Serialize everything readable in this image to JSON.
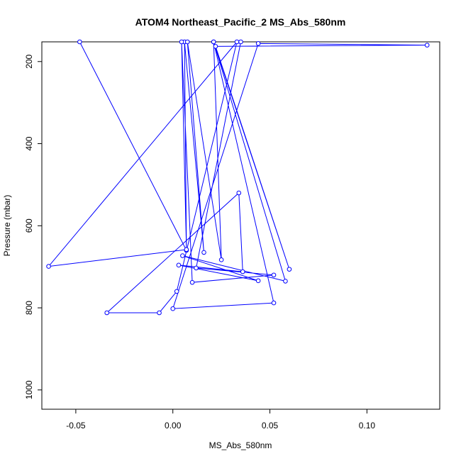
{
  "chart_data": {
    "type": "line",
    "title": "ATOM4 Northeast_Pacific_2 MS_Abs_580nm",
    "xlabel": "MS_Abs_580nm",
    "ylabel": "Pressure (mbar)",
    "xlim": [
      -0.0675,
      0.1375
    ],
    "ylim": [
      1047,
      152
    ],
    "y_reversed": true,
    "x_ticks": [
      -0.05,
      0.0,
      0.05,
      0.1
    ],
    "x_tick_labels": [
      "-0.05",
      "0.00",
      "0.05",
      "0.10"
    ],
    "y_ticks": [
      200,
      400,
      600,
      800,
      1000
    ],
    "y_tick_labels": [
      "200",
      "400",
      "600",
      "800",
      "1000"
    ],
    "grid": false,
    "legend": "none",
    "color": "#0000ff",
    "series": [
      {
        "points": [
          {
            "x": -0.048,
            "y": 152
          },
          {
            "x": 0.007,
            "y": 660
          },
          {
            "x": 0.006,
            "y": 152
          },
          {
            "x": 0.016,
            "y": 665
          },
          {
            "x": 0.0075,
            "y": 152
          },
          {
            "x": 0.025,
            "y": 683
          },
          {
            "x": 0.021,
            "y": 152
          },
          {
            "x": 0.06,
            "y": 706
          },
          {
            "x": 0.022,
            "y": 163
          },
          {
            "x": 0.131,
            "y": 160
          },
          {
            "x": 0.044,
            "y": 156
          },
          {
            "x": 0.0,
            "y": 802
          },
          {
            "x": 0.052,
            "y": 788
          },
          {
            "x": 0.021,
            "y": 152
          },
          {
            "x": 0.058,
            "y": 735
          },
          {
            "x": 0.005,
            "y": 673
          },
          {
            "x": 0.044,
            "y": 734
          },
          {
            "x": 0.003,
            "y": 696
          },
          {
            "x": 0.036,
            "y": 712
          },
          {
            "x": 0.034,
            "y": 520
          },
          {
            "x": -0.034,
            "y": 812
          },
          {
            "x": -0.007,
            "y": 812
          },
          {
            "x": 0.002,
            "y": 760
          },
          {
            "x": 0.033,
            "y": 152
          },
          {
            "x": -0.064,
            "y": 699
          },
          {
            "x": 0.007,
            "y": 658
          },
          {
            "x": 0.0045,
            "y": 152
          },
          {
            "x": 0.01,
            "y": 738
          },
          {
            "x": 0.052,
            "y": 720
          },
          {
            "x": 0.012,
            "y": 703
          },
          {
            "x": 0.035,
            "y": 152
          }
        ]
      }
    ]
  }
}
